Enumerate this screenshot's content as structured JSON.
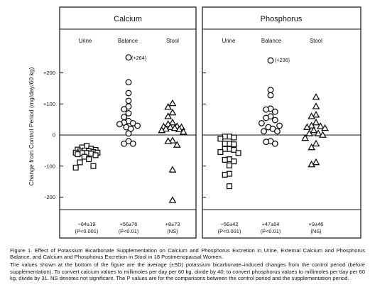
{
  "y_axis": {
    "label": "Change from Control Period (mg/day/60 kg)",
    "ticks": [
      {
        "value": 200,
        "label": "+200"
      },
      {
        "value": 100,
        "label": "+100"
      },
      {
        "value": 0,
        "label": "0"
      },
      {
        "value": -100,
        "label": "-100"
      },
      {
        "value": -200,
        "label": "-200"
      }
    ]
  },
  "panels": [
    {
      "title": "Calcium",
      "columns": [
        {
          "label": "Urine",
          "marker": "square",
          "summary": "−64±19",
          "p_value": "(P<0.001)"
        },
        {
          "label": "Balance",
          "marker": "circle",
          "summary": "+56±76",
          "p_value": "(P<0.01)"
        },
        {
          "label": "Stool",
          "marker": "triangle",
          "summary": "+8±73",
          "p_value": "(NS)"
        }
      ],
      "offscale_note": "(+264)"
    },
    {
      "title": "Phosphorus",
      "columns": [
        {
          "label": "Urine",
          "marker": "square",
          "summary": "−56±42",
          "p_value": "(P<0.001)"
        },
        {
          "label": "Balance",
          "marker": "circle",
          "summary": "+47±64",
          "p_value": "(P<0.01)"
        },
        {
          "label": "Stool",
          "marker": "triangle",
          "summary": "+9±46",
          "p_value": "(NS)"
        }
      ],
      "offscale_note": "(+236)"
    }
  ],
  "caption": {
    "title": "Figure 1. Effect of Potassium Bicarbonate Supplementation on Calcium and Phosphorus Excretion in Urine, External Calcium and Phosphorus Balance, and Calcium and Phosphorus Excretion in Stool in 18 Postmenopausal Women.",
    "body": "The values shown at the bottom of the figure are the average (±SD) potassium bicarbonate–induced changes from the control period (before supplementation). To convert calcium values to millimoles per day per 60 kg, divide by 40; to convert phosphorus values to millimoles per day per 60 kg, divide by 31. NS denotes not significant. The P values are for the comparisons between the control period and the supplementation period."
  },
  "chart_data": [
    {
      "type": "scatter",
      "title": "Calcium",
      "ylabel": "Change from Control Period (mg/day/60 kg)",
      "ylim": [
        -240,
        250
      ],
      "categories": [
        "Urine",
        "Balance",
        "Stool"
      ],
      "series": [
        {
          "name": "Urine",
          "values": [
            -55,
            -57,
            -58,
            -60,
            -57,
            -53,
            -52,
            -50,
            -48,
            -47,
            -44,
            -40,
            -35,
            -65,
            -70,
            -78,
            -88,
            -100,
            -105,
            -58,
            -62
          ]
        },
        {
          "name": "Balance",
          "values": [
            250,
            170,
            135,
            110,
            92,
            83,
            70,
            58,
            45,
            40,
            38,
            35,
            30,
            25,
            20,
            5,
            -20,
            -28,
            -28
          ]
        },
        {
          "name": "Stool",
          "values": [
            102,
            90,
            72,
            60,
            40,
            35,
            28,
            27,
            25,
            20,
            15,
            18,
            22,
            25,
            10,
            -18,
            -20,
            -32,
            -112,
            -210
          ]
        }
      ]
    },
    {
      "type": "scatter",
      "title": "Phosphorus",
      "ylabel": "Change from Control Period (mg/day/60 kg)",
      "ylim": [
        -240,
        250
      ],
      "categories": [
        "Urine",
        "Balance",
        "Stool"
      ],
      "series": [
        {
          "name": "Urine",
          "values": [
            -5,
            -5,
            -8,
            -12,
            -28,
            -28,
            -30,
            -45,
            -45,
            -48,
            -55,
            -58,
            -78,
            -80,
            -85,
            -98,
            -125,
            -128,
            -165
          ]
        },
        {
          "name": "Balance",
          "values": [
            240,
            145,
            128,
            85,
            82,
            75,
            60,
            55,
            48,
            38,
            30,
            25,
            20,
            12,
            12,
            -20,
            -22,
            -28
          ]
        },
        {
          "name": "Stool",
          "values": [
            122,
            92,
            65,
            60,
            40,
            30,
            28,
            25,
            22,
            15,
            5,
            5,
            0,
            -10,
            -28,
            -40,
            -88,
            -95
          ]
        }
      ]
    }
  ]
}
